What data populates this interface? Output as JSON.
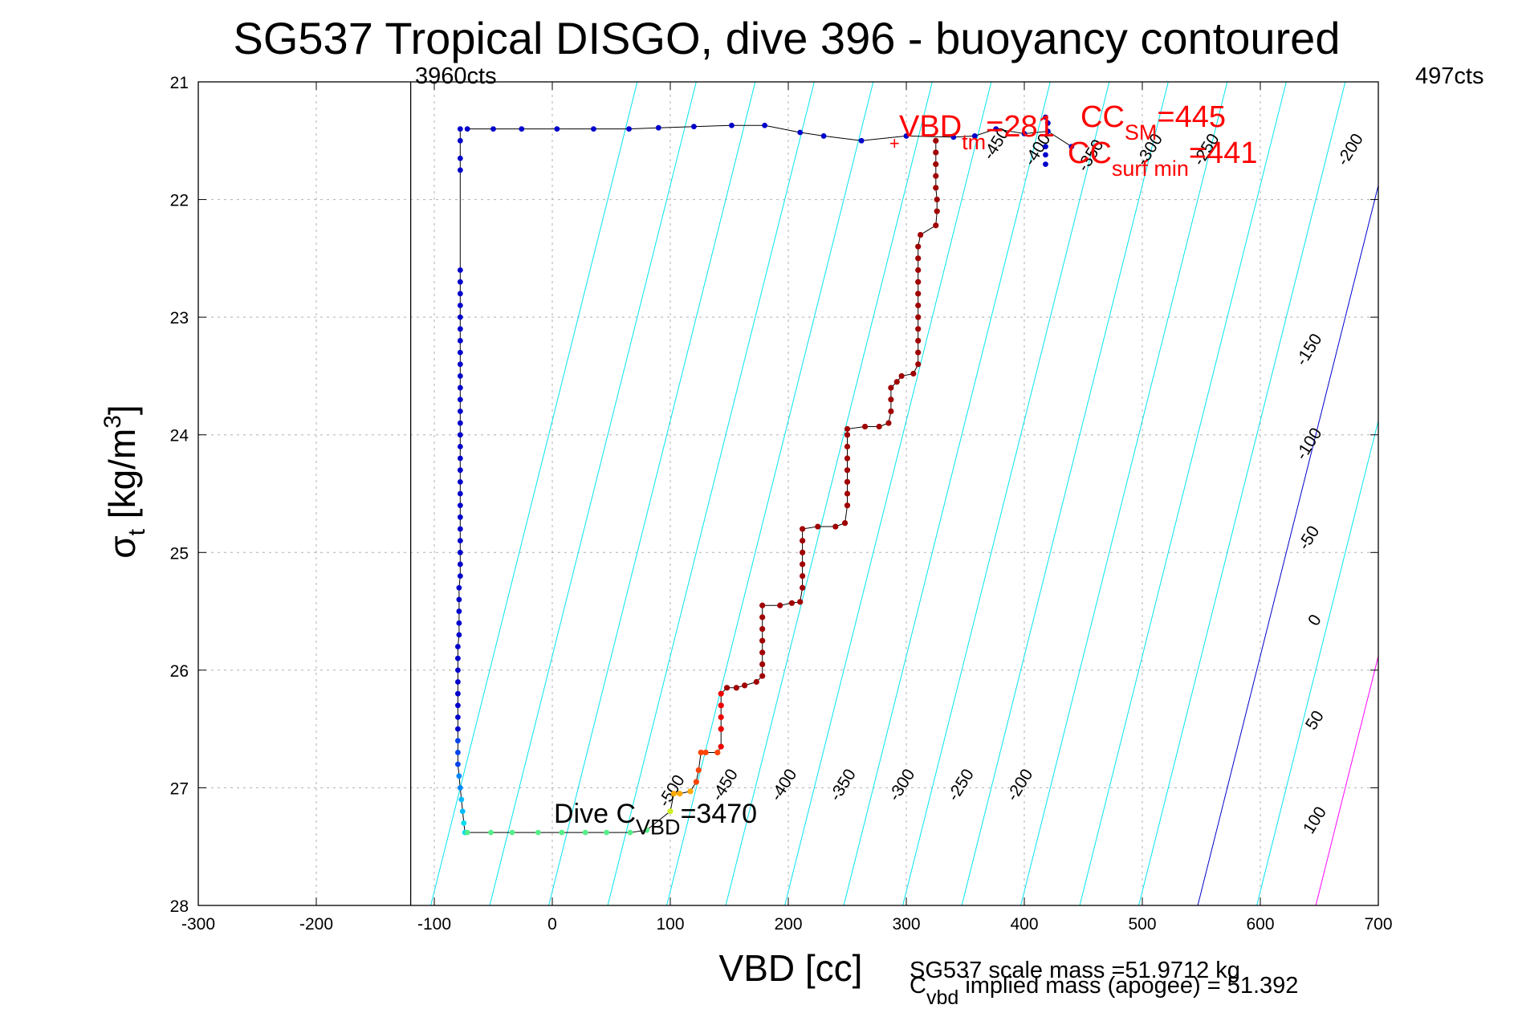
{
  "chart_data": {
    "type": "scatter",
    "title": "SG537 Tropical DISGO, dive 396 - buoyancy contoured",
    "xlabel": "VBD [cc]",
    "ylabel_main": "σ",
    "ylabel_sub": "t",
    "ylabel_rest": " [kg/m",
    "ylabel_sup": "3",
    "ylabel_end": "]",
    "xlim": [
      -300,
      700
    ],
    "ylim": [
      21,
      28
    ],
    "y_reversed": true,
    "grid": true,
    "xticks": [
      "-300",
      "-200",
      "-100",
      "0",
      "100",
      "200",
      "300",
      "400",
      "500",
      "600",
      "700"
    ],
    "yticks": [
      "21",
      "22",
      "23",
      "24",
      "25",
      "26",
      "27",
      "28"
    ],
    "vline_x": -120,
    "left_counts": "3960cts",
    "right_counts": "497cts",
    "colors": {
      "contour": "#00e5ee",
      "zero": "#0000cc",
      "positive": "#ff00ff",
      "dive": "#0000cc",
      "climb": "#a00000",
      "text_red": "#ff0000"
    },
    "contours_cyan_bottom": [
      {
        "v": -500,
        "x28": 47
      },
      {
        "v": -450,
        "x28": 97
      },
      {
        "v": -400,
        "x28": 147
      },
      {
        "v": -350,
        "x28": 197
      },
      {
        "v": -300,
        "x28": 247
      },
      {
        "v": -250,
        "x28": 297
      },
      {
        "v": -200,
        "x28": 347
      },
      {
        "v": -150,
        "x28": 397
      },
      {
        "v": -100,
        "x28": 447
      },
      {
        "v": -50,
        "x28": 497
      }
    ],
    "contour_zero": {
      "v": 0,
      "x28": 547
    },
    "contour_positive": {
      "v": 100,
      "x28": 647
    },
    "contour_label_values": [
      "-500",
      "-450",
      "-400",
      "-350",
      "-300",
      "-250",
      "-200",
      "-150",
      "-100",
      "-50",
      "0",
      "50",
      "100"
    ],
    "top_contour_labels": [
      "-450",
      "-400",
      "-350",
      "-300",
      "-250",
      "-200"
    ],
    "dive_points": [
      [
        -78,
        21.4
      ],
      [
        -78,
        21.5
      ],
      [
        -78,
        21.65
      ],
      [
        -78,
        21.75
      ],
      [
        -78,
        22.6
      ],
      [
        -78,
        22.7
      ],
      [
        -78,
        22.8
      ],
      [
        -78,
        22.9
      ],
      [
        -78,
        23.0
      ],
      [
        -78,
        23.1
      ],
      [
        -78,
        23.2
      ],
      [
        -78,
        23.3
      ],
      [
        -78,
        23.4
      ],
      [
        -78,
        23.5
      ],
      [
        -78,
        23.6
      ],
      [
        -78,
        23.7
      ],
      [
        -78,
        23.8
      ],
      [
        -78,
        23.9
      ],
      [
        -78,
        24.0
      ],
      [
        -78,
        24.1
      ],
      [
        -78,
        24.2
      ],
      [
        -78,
        24.3
      ],
      [
        -78,
        24.4
      ],
      [
        -78,
        24.5
      ],
      [
        -78,
        24.6
      ],
      [
        -78,
        24.7
      ],
      [
        -78,
        24.8
      ],
      [
        -78,
        24.9
      ],
      [
        -78,
        25.0
      ],
      [
        -78,
        25.1
      ],
      [
        -78,
        25.2
      ],
      [
        -79,
        25.3
      ],
      [
        -79,
        25.4
      ],
      [
        -79,
        25.5
      ],
      [
        -79,
        25.6
      ],
      [
        -79,
        25.7
      ],
      [
        -80,
        25.8
      ],
      [
        -80,
        25.9
      ],
      [
        -80,
        26.0
      ],
      [
        -80,
        26.1
      ],
      [
        -80,
        26.2
      ],
      [
        -80,
        26.3
      ],
      [
        -80,
        26.4
      ],
      [
        -80,
        26.5
      ],
      [
        -80,
        26.6
      ],
      [
        -80,
        26.7
      ],
      [
        -80,
        26.8
      ],
      [
        -79,
        26.9
      ],
      [
        -78,
        27.0
      ],
      [
        -77,
        27.1
      ],
      [
        -76,
        27.2
      ],
      [
        -75,
        27.3
      ],
      [
        -74,
        27.38
      ]
    ],
    "bottom_points": [
      [
        -72,
        27.38
      ],
      [
        -52,
        27.38
      ],
      [
        -34,
        27.38
      ],
      [
        -12,
        27.38
      ],
      [
        8,
        27.38
      ],
      [
        28,
        27.38
      ],
      [
        46,
        27.38
      ],
      [
        66,
        27.38
      ],
      [
        80,
        27.36
      ]
    ],
    "climb_points": [
      [
        100,
        27.2
      ],
      [
        103,
        27.05
      ],
      [
        108,
        27.05
      ],
      [
        117,
        27.03
      ],
      [
        122,
        26.95
      ],
      [
        124,
        26.85
      ],
      [
        126,
        26.7
      ],
      [
        130,
        26.7
      ],
      [
        140,
        26.7
      ],
      [
        143,
        26.65
      ],
      [
        143,
        26.5
      ],
      [
        143,
        26.4
      ],
      [
        143,
        26.3
      ],
      [
        143,
        26.2
      ],
      [
        148,
        26.15
      ],
      [
        156,
        26.15
      ],
      [
        163,
        26.13
      ],
      [
        173,
        26.1
      ],
      [
        178,
        26.05
      ],
      [
        178,
        25.95
      ],
      [
        178,
        25.85
      ],
      [
        178,
        25.75
      ],
      [
        178,
        25.65
      ],
      [
        178,
        25.55
      ],
      [
        178,
        25.45
      ],
      [
        193,
        25.45
      ],
      [
        203,
        25.43
      ],
      [
        210,
        25.42
      ],
      [
        212,
        25.3
      ],
      [
        212,
        25.2
      ],
      [
        212,
        25.1
      ],
      [
        212,
        25.0
      ],
      [
        212,
        24.9
      ],
      [
        212,
        24.8
      ],
      [
        225,
        24.78
      ],
      [
        240,
        24.78
      ],
      [
        248,
        24.75
      ],
      [
        250,
        24.6
      ],
      [
        250,
        24.5
      ],
      [
        250,
        24.4
      ],
      [
        250,
        24.3
      ],
      [
        250,
        24.2
      ],
      [
        250,
        24.1
      ],
      [
        250,
        24.0
      ],
      [
        250,
        23.95
      ],
      [
        265,
        23.93
      ],
      [
        277,
        23.93
      ],
      [
        285,
        23.9
      ],
      [
        287,
        23.8
      ],
      [
        287,
        23.7
      ],
      [
        287,
        23.6
      ],
      [
        292,
        23.55
      ],
      [
        296,
        23.5
      ],
      [
        306,
        23.48
      ],
      [
        310,
        23.4
      ],
      [
        310,
        23.3
      ],
      [
        310,
        23.2
      ],
      [
        310,
        23.1
      ],
      [
        310,
        23.0
      ],
      [
        310,
        22.9
      ],
      [
        310,
        22.8
      ],
      [
        310,
        22.7
      ],
      [
        310,
        22.6
      ],
      [
        310,
        22.5
      ],
      [
        310,
        22.4
      ],
      [
        312,
        22.3
      ],
      [
        325,
        22.22
      ],
      [
        326,
        22.1
      ],
      [
        326,
        22.0
      ],
      [
        325,
        21.9
      ],
      [
        325,
        21.8
      ],
      [
        325,
        21.7
      ],
      [
        325,
        21.6
      ],
      [
        325,
        21.5
      ]
    ],
    "surface_points": [
      [
        -72,
        21.4
      ],
      [
        -50,
        21.4
      ],
      [
        -26,
        21.4
      ],
      [
        4,
        21.4
      ],
      [
        35,
        21.4
      ],
      [
        65,
        21.4
      ],
      [
        90,
        21.39
      ],
      [
        120,
        21.38
      ],
      [
        152,
        21.37
      ],
      [
        180,
        21.37
      ],
      [
        210,
        21.43
      ],
      [
        230,
        21.46
      ],
      [
        262,
        21.5
      ],
      [
        300,
        21.46
      ],
      [
        340,
        21.47
      ],
      [
        358,
        21.46
      ],
      [
        376,
        21.4
      ],
      [
        400,
        21.44
      ],
      [
        420,
        21.42
      ],
      [
        440,
        21.55
      ],
      [
        418,
        21.3
      ],
      [
        418,
        21.55
      ],
      [
        418,
        21.62
      ],
      [
        418,
        21.7
      ],
      [
        420,
        21.35
      ]
    ],
    "marker_surf": {
      "x": 290,
      "y": 21.52
    },
    "marker_surf_label": "+",
    "vbd_tm_text": "VBD",
    "vbd_tm_sub": "tm",
    "vbd_tm_val": "=281",
    "cc_sm_text": "CC",
    "cc_sm_sub": "SM",
    "cc_sm_val": "=445",
    "cc_surf_text": "CC",
    "cc_surf_sub": "surf min",
    "cc_surf_val": "=441",
    "dive_c_text": "Dive C",
    "dive_c_sub": "VBD",
    "dive_c_val": "=3470",
    "scale_mass": "SG537 scale mass =51.9712 kg",
    "implied_mass_pre": "C",
    "implied_mass_sub": "vbd",
    "implied_mass_rest": " implied mass (apogee) = 51.392"
  }
}
